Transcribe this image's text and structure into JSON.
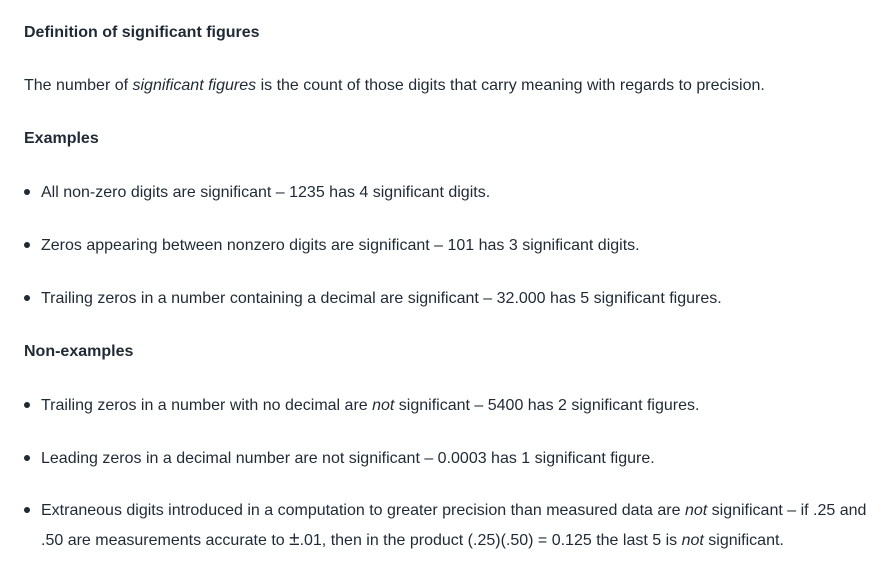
{
  "definition": {
    "heading": "Definition of significant figures",
    "text_before": "The number of ",
    "text_emphasis": "significant figures",
    "text_after": " is the count of those digits that carry meaning with regards to precision."
  },
  "examples": {
    "heading": "Examples",
    "items": [
      {
        "text": "All non-zero digits are significant – 1235 has 4 significant digits."
      },
      {
        "text": "Zeros appearing between nonzero digits are significant – 101 has 3 significant digits."
      },
      {
        "text": "Trailing zeros in a number containing a decimal are significant – 32.000 has 5 significant figures."
      }
    ]
  },
  "non_examples": {
    "heading": "Non-examples",
    "items": [
      {
        "before": "Trailing zeros in a number with no decimal are ",
        "emphasis": "not",
        "after": " significant – 5400 has 2 significant figures."
      },
      {
        "text": "Leading zeros in a decimal number are not significant – 0.0003 has 1 significant figure."
      },
      {
        "part1": "Extraneous digits introduced in a computation to greater precision than measured data are ",
        "emphasis1": "not",
        "part2": " significant – if .25 and .50 are measurements accurate to ",
        "plus_minus": "±",
        "part3": ".01, then in the product (.25)(.50) = 0.125 the last 5 is ",
        "emphasis2": "not",
        "part4": " significant."
      }
    ]
  }
}
